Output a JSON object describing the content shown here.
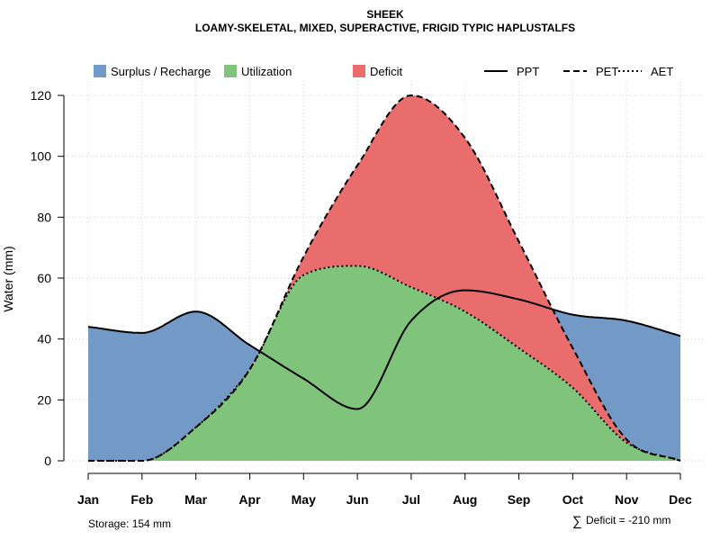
{
  "chart_data": {
    "type": "area",
    "title": "SHEEK",
    "subtitle": "LOAMY-SKELETAL, MIXED, SUPERACTIVE, FRIGID TYPIC HAPLUSTALFS",
    "xlabel": "",
    "ylabel": "Water (mm)",
    "ylim": [
      0,
      120
    ],
    "yticks": [
      0,
      20,
      40,
      60,
      80,
      100,
      120
    ],
    "grid": true,
    "categories": [
      "Jan",
      "Feb",
      "Mar",
      "Apr",
      "May",
      "Jun",
      "Jul",
      "Aug",
      "Sep",
      "Oct",
      "Nov",
      "Dec"
    ],
    "series": [
      {
        "name": "PPT",
        "line_style": "solid",
        "values": [
          44,
          42,
          49,
          38,
          27,
          17,
          46,
          56,
          53,
          48,
          46,
          41
        ]
      },
      {
        "name": "PET",
        "line_style": "dashed",
        "values": [
          0,
          0,
          11,
          30,
          67,
          97,
          120,
          106,
          72,
          37,
          7,
          0
        ]
      },
      {
        "name": "AET",
        "line_style": "dotted",
        "values": [
          0,
          0,
          11,
          30,
          61,
          64,
          57,
          49,
          37,
          24,
          6,
          0
        ]
      }
    ],
    "fills": [
      {
        "name": "Surplus / Recharge",
        "color": "#7399c6"
      },
      {
        "name": "Utilization",
        "color": "#80c47c"
      },
      {
        "name": "Deficit",
        "color": "#ea6d6d"
      }
    ],
    "legend_position": "top",
    "annotations": {
      "storage": "Storage: 154 mm",
      "deficit_symbol": "∑",
      "deficit": "Deficit = -210 mm"
    }
  }
}
